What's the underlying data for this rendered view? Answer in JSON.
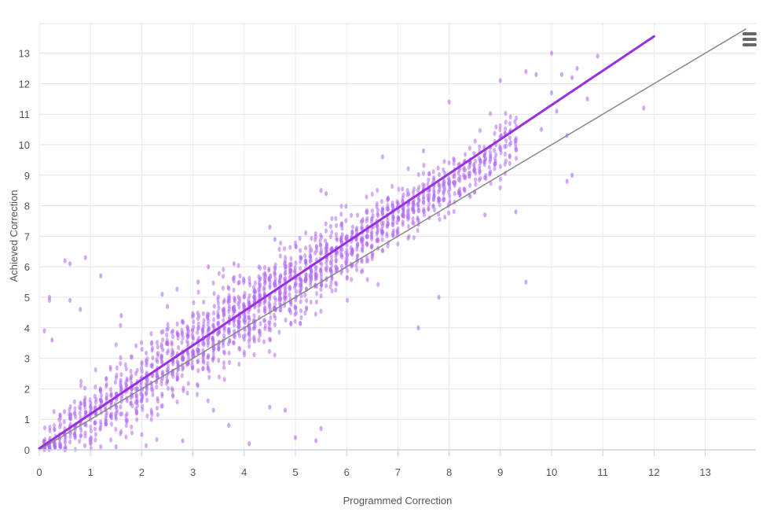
{
  "chart_data": {
    "type": "scatter",
    "title": "",
    "xlabel": "Programmed Correction",
    "ylabel": "Achieved Correction",
    "xlim": [
      0,
      13.8
    ],
    "ylim": [
      0,
      13.8
    ],
    "x_ticks": [
      "0",
      "1",
      "2",
      "3",
      "4",
      "5",
      "6",
      "7",
      "8",
      "9",
      "10",
      "11",
      "12",
      "13"
    ],
    "y_ticks": [
      "0",
      "1",
      "2",
      "3",
      "4",
      "5",
      "6",
      "7",
      "8",
      "9",
      "10",
      "11",
      "12",
      "13"
    ],
    "grid": true,
    "legend": "none",
    "series": [
      {
        "type": "scatter",
        "color": "#b36bf0",
        "bulk_model": {
          "x_min": 0.1,
          "x_max": 9.3,
          "x_step": 0.1,
          "slope": 1.09,
          "intercept": 0.05,
          "spread_min": 0.9,
          "spread_max": 1.6
        },
        "outliers": [
          [
            0.5,
            6.2
          ],
          [
            0.6,
            6.1
          ],
          [
            0.9,
            6.3
          ],
          [
            1.2,
            5.7
          ],
          [
            0.2,
            5.0
          ],
          [
            0.2,
            4.9
          ],
          [
            0.6,
            4.9
          ],
          [
            0.8,
            4.6
          ],
          [
            0.1,
            3.9
          ],
          [
            0.25,
            3.6
          ],
          [
            1.6,
            4.4
          ],
          [
            2.4,
            5.1
          ],
          [
            2.5,
            4.7
          ],
          [
            3.1,
            5.5
          ],
          [
            3.3,
            6.0
          ],
          [
            3.8,
            6.1
          ],
          [
            4.5,
            7.3
          ],
          [
            4.6,
            6.9
          ],
          [
            5.5,
            8.5
          ],
          [
            5.6,
            8.4
          ],
          [
            6.7,
            9.6
          ],
          [
            7.5,
            9.8
          ],
          [
            8.0,
            11.4
          ],
          [
            9.0,
            12.1
          ],
          [
            9.5,
            12.4
          ],
          [
            9.7,
            12.3
          ],
          [
            10.0,
            13.0
          ],
          [
            10.2,
            12.3
          ],
          [
            10.4,
            12.2
          ],
          [
            10.5,
            12.5
          ],
          [
            10.9,
            12.9
          ],
          [
            10.7,
            11.5
          ],
          [
            10.0,
            11.7
          ],
          [
            10.1,
            11.1
          ],
          [
            10.3,
            10.3
          ],
          [
            10.4,
            9.0
          ],
          [
            10.3,
            8.8
          ],
          [
            9.8,
            10.5
          ],
          [
            11.8,
            11.2
          ],
          [
            9.3,
            7.8
          ],
          [
            9.5,
            5.5
          ],
          [
            8.7,
            7.7
          ],
          [
            7.4,
            4.0
          ],
          [
            7.8,
            5.0
          ],
          [
            3.4,
            1.3
          ],
          [
            3.7,
            0.8
          ],
          [
            4.1,
            0.2
          ],
          [
            4.5,
            1.4
          ],
          [
            4.8,
            1.3
          ],
          [
            5.0,
            0.4
          ],
          [
            5.4,
            0.3
          ],
          [
            5.5,
            0.7
          ],
          [
            1.2,
            0.1
          ],
          [
            1.5,
            0.1
          ],
          [
            2.0,
            0.5
          ],
          [
            1.0,
            0.2
          ],
          [
            2.8,
            0.3
          ]
        ]
      },
      {
        "type": "line",
        "name": "",
        "color": "#9b2fe0",
        "points": [
          [
            0,
            0.05
          ],
          [
            12,
            13.55
          ]
        ]
      },
      {
        "type": "line",
        "name": "",
        "color": "#888888",
        "points": [
          [
            0,
            0
          ],
          [
            13.8,
            13.8
          ]
        ]
      }
    ]
  }
}
